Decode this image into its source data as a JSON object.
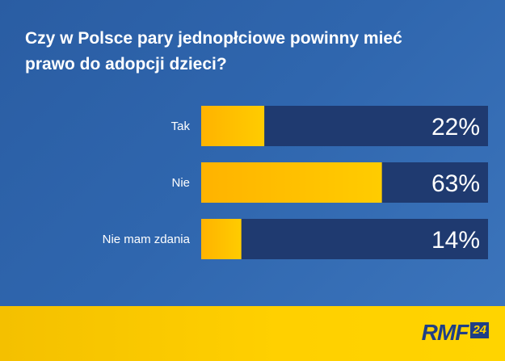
{
  "chart_data": {
    "type": "bar",
    "orientation": "horizontal",
    "title": "Czy w Polsce pary jednopłciowe powinny mieć prawo do adopcji dzieci?",
    "title_lines": [
      "Czy w Polsce pary jednopłciowe powinny mieć",
      "prawo do adopcji dzieci?"
    ],
    "categories": [
      "Tak",
      "Nie",
      "Nie mam zdania"
    ],
    "values": [
      22,
      63,
      14
    ],
    "value_labels": [
      "22%",
      "63%",
      "14%"
    ],
    "unit": "%",
    "xlim": [
      0,
      100
    ],
    "grid": false,
    "legend": "none"
  },
  "colors": {
    "background": "#2f66ae",
    "bar_fill": "#ffc400",
    "bar_track": "#1f3a70",
    "value_text": "#ffffff",
    "footer": "#ffd000",
    "logo": "#1f3f86"
  },
  "footer": {
    "logo_text": "RMF",
    "logo_badge": "24"
  }
}
